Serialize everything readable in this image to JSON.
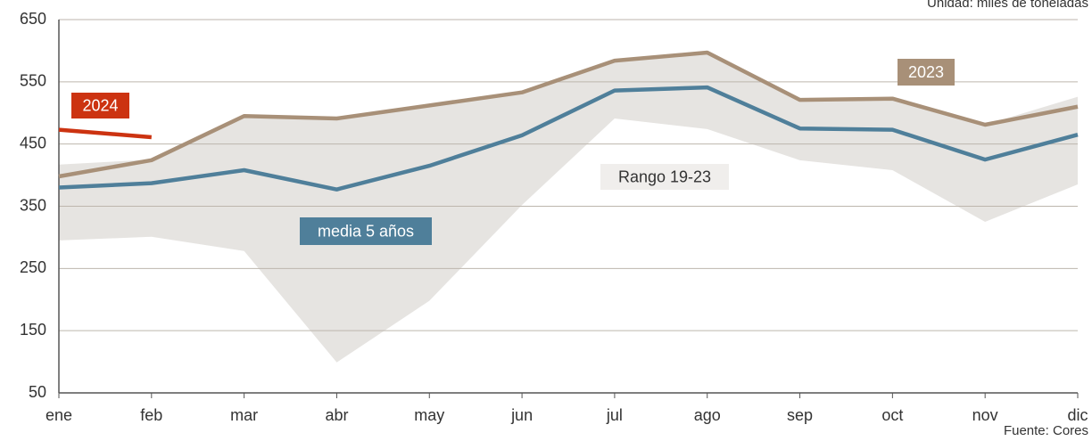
{
  "chart_data": {
    "type": "line",
    "unit_note": "Unidad: miles de toneladas",
    "source": "Fuente: Cores",
    "categories": [
      "ene",
      "feb",
      "mar",
      "abr",
      "may",
      "jun",
      "jul",
      "ago",
      "sep",
      "oct",
      "nov",
      "dic"
    ],
    "band": {
      "name": "Rango 19-23",
      "color": "#e6e4e1",
      "upper": [
        417,
        425,
        495,
        491,
        512,
        533,
        585,
        597,
        521,
        523,
        481,
        526
      ],
      "lower": [
        295,
        301,
        278,
        99,
        198,
        352,
        491,
        474,
        424,
        408,
        325,
        385
      ]
    },
    "series": [
      {
        "name": "2023",
        "color": "#a89078",
        "values": [
          398,
          424,
          495,
          491,
          512,
          533,
          584,
          597,
          521,
          523,
          481,
          510
        ]
      },
      {
        "name": "media 5 años",
        "color": "#4f7f9a",
        "values": [
          380,
          387,
          408,
          377,
          415,
          464,
          536,
          541,
          475,
          473,
          425,
          465
        ]
      },
      {
        "name": "2024",
        "color": "#cc3311",
        "values": [
          473,
          461,
          null,
          null,
          null,
          null,
          null,
          null,
          null,
          null,
          null,
          null
        ]
      }
    ],
    "ylim": [
      50,
      650
    ],
    "yticks": [
      50,
      150,
      250,
      350,
      450,
      550,
      650
    ],
    "grid": true
  }
}
